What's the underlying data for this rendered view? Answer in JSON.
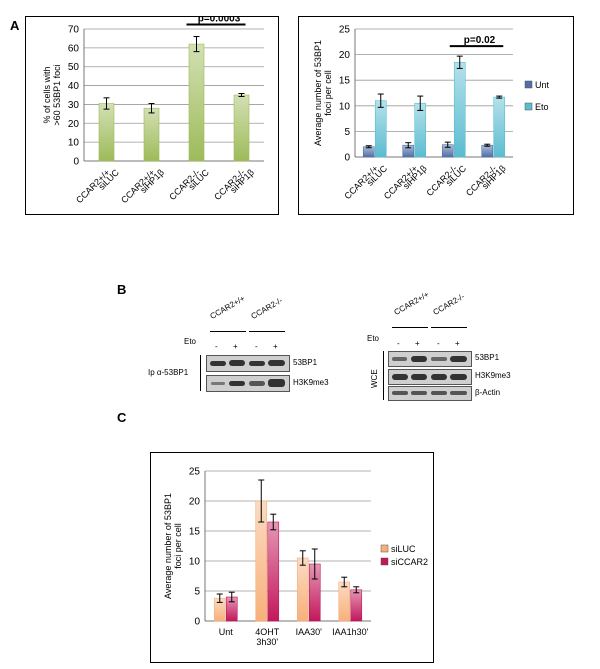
{
  "panels": {
    "A": "A",
    "B": "B",
    "C": "C"
  },
  "chart_data": [
    {
      "type": "bar",
      "title": "",
      "ylabel": "% of cells with >60 53BP1 foci",
      "ylim": [
        0,
        70
      ],
      "yticks": [
        0,
        10,
        20,
        30,
        40,
        50,
        60,
        70
      ],
      "categories": [
        "CCAR2+/+ siLUC",
        "CCAR2+/+ siHP1β",
        "CCAR2-/- siLUC",
        "CCAR2-/- siHP1β"
      ],
      "series": [
        {
          "values": [
            30.5,
            28,
            62,
            35
          ],
          "errors": [
            3,
            2.5,
            4,
            0.8
          ]
        }
      ],
      "annotation": "p=0.0003",
      "grid": true,
      "color": "#9dbb59"
    },
    {
      "type": "bar",
      "title": "",
      "ylabel": "Average number of 53BP1 foci per cell",
      "ylim": [
        0,
        25
      ],
      "yticks": [
        0,
        5,
        10,
        15,
        20,
        25
      ],
      "categories": [
        "CCAR2+/+ siLUC",
        "CCAR2+/+ siHP1β",
        "CCAR2-/- siLUC",
        "CCAR2-/- siHP1β"
      ],
      "series": [
        {
          "name": "Unt",
          "values": [
            2,
            2.3,
            2.4,
            2.3
          ],
          "errors": [
            0.2,
            0.5,
            0.5,
            0.2
          ],
          "color": "#4f6fa6"
        },
        {
          "name": "Eto",
          "values": [
            11,
            10.5,
            18.5,
            11.7
          ],
          "errors": [
            1.3,
            1.4,
            1.2,
            0.2
          ],
          "color": "#5bbcd0"
        }
      ],
      "annotation": "p=0.02",
      "legend": "right",
      "grid": true
    },
    {
      "type": "bar",
      "title": "",
      "ylabel": "Average number of 53BP1 foci per cell",
      "ylim": [
        0,
        25
      ],
      "yticks": [
        0,
        5,
        10,
        15,
        20,
        25
      ],
      "categories": [
        "Unt",
        "4OHT 3h30'",
        "IAA30'",
        "IAA1h30'"
      ],
      "series": [
        {
          "name": "siLUC",
          "values": [
            3.8,
            20,
            10.5,
            6.5
          ],
          "errors": [
            0.7,
            3.5,
            1.2,
            0.8
          ],
          "color": "#f7b07a"
        },
        {
          "name": "siCCAR2",
          "values": [
            4,
            16.5,
            9.5,
            5.2
          ],
          "errors": [
            0.8,
            1.3,
            2.5,
            0.5
          ],
          "color": "#c2185b"
        }
      ],
      "legend": "right",
      "grid": true
    }
  ],
  "blot": {
    "left": {
      "genotypes": [
        "CCAR2+/+",
        "CCAR2-/-"
      ],
      "eto_label": "Eto",
      "eto_marks": [
        "-",
        "+",
        "-",
        "+"
      ],
      "ip_label": "Ip α-53BP1",
      "rows": [
        "53BP1",
        "H3K9me3"
      ]
    },
    "right": {
      "genotypes": [
        "CCAR2+/+",
        "CCAR2-/-"
      ],
      "eto_label": "Eto",
      "eto_marks": [
        "-",
        "+",
        "-",
        "+"
      ],
      "side_label": "WCE",
      "rows": [
        "53BP1",
        "H3K9me3",
        "β-Actin"
      ]
    }
  }
}
